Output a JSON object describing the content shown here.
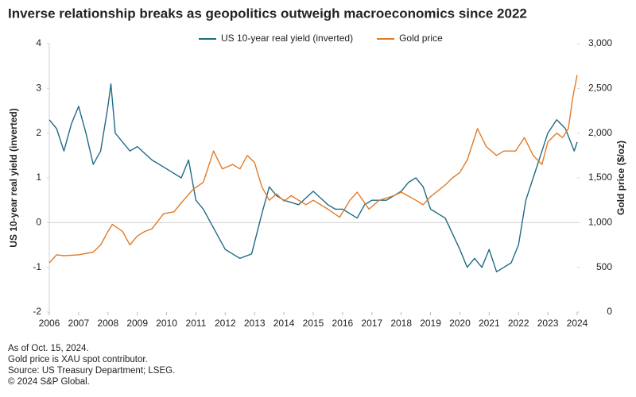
{
  "chart_data": {
    "type": "line",
    "title": "Inverse relationship breaks as geopolitics outweigh macroeconomics since 2022",
    "y_label": "US 10-year real yield (inverted)",
    "y2_label": "Gold price ($/oz)",
    "notes": [
      "As of Oct. 15, 2024.",
      "Gold price is XAU spot contributor.",
      "Source: US Treasury Department; LSEG.",
      "© 2024 S&P Global."
    ],
    "xlim": [
      2006,
      2024
    ],
    "xticks": [
      2006,
      2007,
      2008,
      2009,
      2010,
      2011,
      2012,
      2013,
      2014,
      2015,
      2016,
      2017,
      2018,
      2019,
      2020,
      2021,
      2022,
      2023,
      2024
    ],
    "ylim": [
      -2,
      4
    ],
    "yticks": [
      -2,
      -1,
      0,
      1,
      2,
      3,
      4
    ],
    "y2lim": [
      0,
      3000
    ],
    "y2ticks": [
      0,
      500,
      {
        "value": 1000,
        "label": "1,000"
      },
      {
        "value": 1500,
        "label": "1,500"
      },
      {
        "value": 2000,
        "label": "2,000"
      },
      {
        "value": 2500,
        "label": "2,500"
      },
      {
        "value": 3000,
        "label": "3,000"
      }
    ],
    "legend": "top",
    "series": [
      {
        "name": "US 10-year real yield (inverted)",
        "color": "#1f6b85",
        "x": [
          2006,
          2006.25,
          2006.5,
          2006.75,
          2007,
          2007.25,
          2007.5,
          2007.75,
          2008,
          2008.1,
          2008.25,
          2008.5,
          2008.75,
          2009,
          2009.5,
          2010,
          2010.5,
          2010.75,
          2011,
          2011.25,
          2011.5,
          2011.75,
          2012,
          2012.25,
          2012.5,
          2012.9,
          2013.25,
          2013.5,
          2013.75,
          2014,
          2014.5,
          2015,
          2015.5,
          2015.75,
          2016,
          2016.5,
          2016.75,
          2017,
          2017.5,
          2018,
          2018.25,
          2018.5,
          2018.75,
          2019,
          2019.5,
          2020,
          2020.25,
          2020.5,
          2020.75,
          2021,
          2021.25,
          2021.5,
          2021.75,
          2022,
          2022.25,
          2022.5,
          2022.75,
          2023,
          2023.3,
          2023.6,
          2023.9,
          2024
        ],
        "values": [
          2.3,
          2.1,
          1.6,
          2.2,
          2.6,
          2.0,
          1.3,
          1.6,
          2.6,
          3.1,
          2.0,
          1.8,
          1.6,
          1.7,
          1.4,
          1.2,
          1.0,
          1.4,
          0.5,
          0.3,
          0.0,
          -0.3,
          -0.6,
          -0.7,
          -0.8,
          -0.7,
          0.2,
          0.8,
          0.6,
          0.5,
          0.4,
          0.7,
          0.4,
          0.3,
          0.3,
          0.1,
          0.4,
          0.5,
          0.5,
          0.7,
          0.9,
          1.0,
          0.8,
          0.3,
          0.1,
          -0.6,
          -1.0,
          -0.8,
          -1.0,
          -0.6,
          -1.1,
          -1.0,
          -0.9,
          -0.5,
          0.5,
          1.0,
          1.5,
          2.0,
          2.3,
          2.1,
          1.6,
          1.8
        ]
      },
      {
        "name": "Gold price",
        "color": "#e07b27",
        "axis": "y2",
        "x": [
          2006,
          2006.25,
          2006.5,
          2007,
          2007.5,
          2007.75,
          2008,
          2008.15,
          2008.5,
          2008.75,
          2009,
          2009.25,
          2009.5,
          2009.9,
          2010.25,
          2010.5,
          2010.9,
          2011.25,
          2011.6,
          2011.9,
          2012.25,
          2012.5,
          2012.75,
          2013,
          2013.25,
          2013.5,
          2013.75,
          2014,
          2014.25,
          2014.75,
          2015,
          2015.5,
          2015.9,
          2016.25,
          2016.5,
          2016.9,
          2017.25,
          2017.75,
          2018,
          2018.5,
          2018.75,
          2019,
          2019.5,
          2019.75,
          2020,
          2020.25,
          2020.6,
          2020.9,
          2021.25,
          2021.5,
          2021.9,
          2022.2,
          2022.5,
          2022.8,
          2023,
          2023.3,
          2023.5,
          2023.7,
          2023.85,
          2024
        ],
        "values": [
          550,
          640,
          630,
          640,
          670,
          750,
          900,
          980,
          900,
          750,
          850,
          900,
          930,
          1100,
          1120,
          1220,
          1370,
          1450,
          1800,
          1600,
          1650,
          1600,
          1750,
          1670,
          1400,
          1250,
          1320,
          1240,
          1300,
          1200,
          1250,
          1150,
          1060,
          1250,
          1340,
          1150,
          1250,
          1300,
          1340,
          1250,
          1200,
          1290,
          1420,
          1500,
          1560,
          1700,
          2050,
          1850,
          1750,
          1800,
          1800,
          1950,
          1750,
          1650,
          1900,
          2000,
          1950,
          2050,
          2400,
          2650
        ]
      }
    ]
  }
}
